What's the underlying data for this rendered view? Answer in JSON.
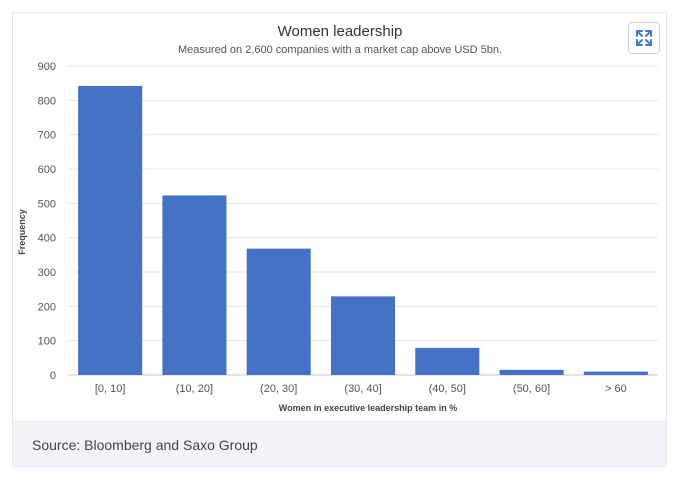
{
  "chart_data": {
    "type": "bar",
    "title": "Women leadership",
    "subtitle": "Measured on 2,600 companies with a market cap above USD 5bn.",
    "xlabel": "Women in executive leadership team in %",
    "ylabel": "Frequency",
    "categories": [
      "[0, 10]",
      "(10, 20]",
      "(20, 30]",
      "(30, 40]",
      "(40, 50]",
      "(50, 60]",
      "> 60"
    ],
    "values": [
      842,
      523,
      368,
      229,
      79,
      15,
      10
    ],
    "ylim": [
      0,
      900
    ],
    "yticks": [
      0,
      100,
      200,
      300,
      400,
      500,
      600,
      700,
      800,
      900
    ],
    "grid": true,
    "bar_color": "#4472c4"
  },
  "footer": {
    "source": "Source: Bloomberg and Saxo Group"
  },
  "icons": {
    "expand": "expand-icon"
  }
}
